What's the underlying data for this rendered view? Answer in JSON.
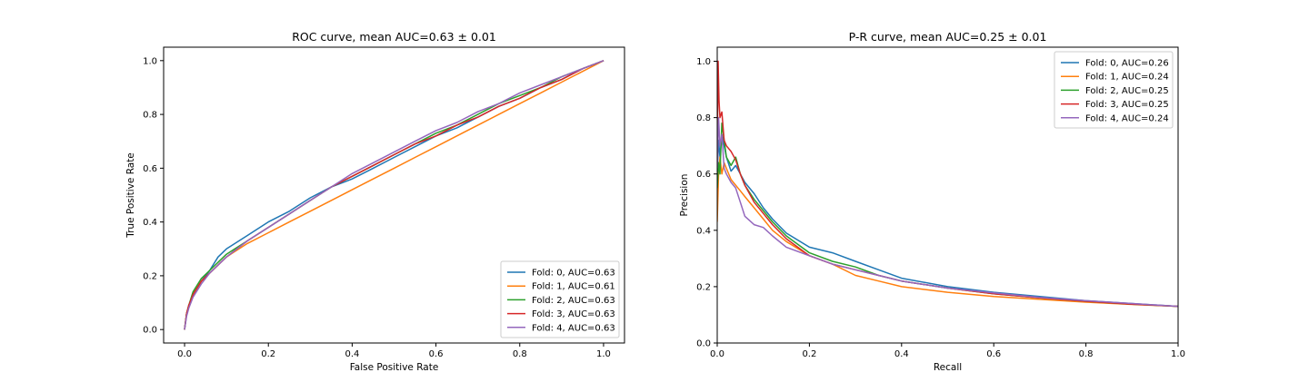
{
  "chart_data": [
    {
      "type": "line",
      "title": "ROC curve, mean AUC=0.63 ± 0.01",
      "xlabel": "False Positive Rate",
      "ylabel": "True Positive Rate",
      "xlim": [
        -0.05,
        1.05
      ],
      "ylim": [
        -0.05,
        1.05
      ],
      "xticks": [
        0.0,
        0.2,
        0.4,
        0.6,
        0.8,
        1.0
      ],
      "yticks": [
        0.0,
        0.2,
        0.4,
        0.6,
        0.8,
        1.0
      ],
      "xtick_labels": [
        "0.0",
        "0.2",
        "0.4",
        "0.6",
        "0.8",
        "1.0"
      ],
      "ytick_labels": [
        "0.0",
        "0.2",
        "0.4",
        "0.6",
        "0.8",
        "1.0"
      ],
      "grid": false,
      "legend_position": "lower-right",
      "series": [
        {
          "name": "Fold: 0, AUC=0.63",
          "color": "#1f77b4",
          "x": [
            0,
            0.005,
            0.01,
            0.02,
            0.04,
            0.06,
            0.08,
            0.1,
            0.15,
            0.2,
            0.25,
            0.3,
            0.35,
            0.4,
            0.45,
            0.5,
            0.55,
            0.6,
            0.65,
            0.7,
            0.75,
            0.8,
            0.85,
            0.9,
            0.95,
            1.0
          ],
          "y": [
            0,
            0.06,
            0.09,
            0.13,
            0.18,
            0.22,
            0.27,
            0.3,
            0.35,
            0.4,
            0.44,
            0.49,
            0.53,
            0.56,
            0.6,
            0.64,
            0.68,
            0.72,
            0.75,
            0.79,
            0.83,
            0.86,
            0.9,
            0.93,
            0.97,
            1.0
          ]
        },
        {
          "name": "Fold: 1, AUC=0.61",
          "color": "#ff7f0e",
          "x": [
            0,
            0.005,
            0.01,
            0.02,
            0.04,
            0.06,
            0.08,
            0.1,
            0.15,
            0.2,
            0.25,
            0.3,
            0.35,
            0.4,
            0.45,
            0.5,
            0.55,
            0.6,
            0.65,
            0.7,
            0.75,
            0.8,
            0.85,
            0.9,
            0.95,
            1.0
          ],
          "y": [
            0,
            0.06,
            0.09,
            0.13,
            0.18,
            0.21,
            0.24,
            0.27,
            0.32,
            0.36,
            0.4,
            0.44,
            0.48,
            0.52,
            0.56,
            0.6,
            0.64,
            0.68,
            0.72,
            0.76,
            0.8,
            0.84,
            0.88,
            0.92,
            0.96,
            1.0
          ]
        },
        {
          "name": "Fold: 2, AUC=0.63",
          "color": "#2ca02c",
          "x": [
            0,
            0.005,
            0.01,
            0.02,
            0.04,
            0.06,
            0.08,
            0.1,
            0.15,
            0.2,
            0.25,
            0.3,
            0.35,
            0.4,
            0.45,
            0.5,
            0.55,
            0.6,
            0.65,
            0.7,
            0.75,
            0.8,
            0.85,
            0.9,
            0.95,
            1.0
          ],
          "y": [
            0,
            0.06,
            0.09,
            0.14,
            0.19,
            0.22,
            0.25,
            0.28,
            0.33,
            0.38,
            0.43,
            0.48,
            0.53,
            0.57,
            0.61,
            0.65,
            0.69,
            0.73,
            0.76,
            0.8,
            0.84,
            0.87,
            0.9,
            0.94,
            0.97,
            1.0
          ]
        },
        {
          "name": "Fold: 3, AUC=0.63",
          "color": "#d62728",
          "x": [
            0,
            0.005,
            0.01,
            0.02,
            0.04,
            0.06,
            0.08,
            0.1,
            0.15,
            0.2,
            0.25,
            0.3,
            0.35,
            0.4,
            0.45,
            0.5,
            0.55,
            0.6,
            0.65,
            0.7,
            0.75,
            0.8,
            0.85,
            0.9,
            0.95,
            1.0
          ],
          "y": [
            0,
            0.06,
            0.09,
            0.13,
            0.18,
            0.21,
            0.24,
            0.27,
            0.33,
            0.38,
            0.43,
            0.48,
            0.53,
            0.57,
            0.61,
            0.65,
            0.69,
            0.72,
            0.76,
            0.79,
            0.83,
            0.86,
            0.9,
            0.93,
            0.97,
            1.0
          ]
        },
        {
          "name": "Fold: 4, AUC=0.63",
          "color": "#9467bd",
          "x": [
            0,
            0.005,
            0.01,
            0.02,
            0.04,
            0.06,
            0.08,
            0.1,
            0.15,
            0.2,
            0.25,
            0.3,
            0.35,
            0.4,
            0.45,
            0.5,
            0.55,
            0.6,
            0.65,
            0.7,
            0.75,
            0.8,
            0.85,
            0.9,
            0.95,
            1.0
          ],
          "y": [
            0,
            0.05,
            0.08,
            0.12,
            0.17,
            0.21,
            0.24,
            0.27,
            0.33,
            0.38,
            0.43,
            0.48,
            0.53,
            0.58,
            0.62,
            0.66,
            0.7,
            0.74,
            0.77,
            0.81,
            0.84,
            0.88,
            0.91,
            0.94,
            0.97,
            1.0
          ]
        }
      ]
    },
    {
      "type": "line",
      "title": "P-R curve, mean AUC=0.25 ± 0.01",
      "xlabel": "Recall",
      "ylabel": "Precision",
      "xlim": [
        0.0,
        1.0
      ],
      "ylim": [
        0.0,
        1.05
      ],
      "xticks": [
        0.0,
        0.2,
        0.4,
        0.6,
        0.8,
        1.0
      ],
      "yticks": [
        0.0,
        0.2,
        0.4,
        0.6,
        0.8,
        1.0
      ],
      "xtick_labels": [
        "0.0",
        "0.2",
        "0.4",
        "0.6",
        "0.8",
        "1.0"
      ],
      "ytick_labels": [
        "0.0",
        "0.2",
        "0.4",
        "0.6",
        "0.8",
        "1.0"
      ],
      "grid": false,
      "legend_position": "upper-right",
      "series": [
        {
          "name": "Fold: 0, AUC=0.26",
          "color": "#1f77b4",
          "x": [
            0,
            0.003,
            0.006,
            0.01,
            0.015,
            0.02,
            0.03,
            0.04,
            0.05,
            0.06,
            0.08,
            0.1,
            0.12,
            0.15,
            0.2,
            0.25,
            0.3,
            0.35,
            0.4,
            0.5,
            0.6,
            0.7,
            0.8,
            0.9,
            1.0
          ],
          "y": [
            0.6,
            0.72,
            0.66,
            0.74,
            0.7,
            0.66,
            0.61,
            0.63,
            0.6,
            0.57,
            0.53,
            0.48,
            0.44,
            0.39,
            0.34,
            0.32,
            0.29,
            0.26,
            0.23,
            0.2,
            0.18,
            0.165,
            0.15,
            0.14,
            0.13
          ]
        },
        {
          "name": "Fold: 1, AUC=0.24",
          "color": "#ff7f0e",
          "x": [
            0,
            0.003,
            0.006,
            0.01,
            0.015,
            0.02,
            0.03,
            0.04,
            0.05,
            0.06,
            0.08,
            0.1,
            0.12,
            0.15,
            0.2,
            0.25,
            0.3,
            0.35,
            0.4,
            0.5,
            0.6,
            0.7,
            0.8,
            0.9,
            1.0
          ],
          "y": [
            0.43,
            0.6,
            0.66,
            0.6,
            0.64,
            0.62,
            0.58,
            0.56,
            0.54,
            0.52,
            0.48,
            0.44,
            0.4,
            0.36,
            0.31,
            0.28,
            0.24,
            0.22,
            0.2,
            0.18,
            0.165,
            0.155,
            0.145,
            0.137,
            0.13
          ]
        },
        {
          "name": "Fold: 2, AUC=0.25",
          "color": "#2ca02c",
          "x": [
            0,
            0.003,
            0.006,
            0.01,
            0.015,
            0.02,
            0.03,
            0.04,
            0.05,
            0.06,
            0.08,
            0.1,
            0.12,
            0.15,
            0.2,
            0.25,
            0.3,
            0.35,
            0.4,
            0.5,
            0.6,
            0.7,
            0.8,
            0.9,
            1.0
          ],
          "y": [
            0.55,
            0.64,
            0.6,
            0.78,
            0.72,
            0.66,
            0.63,
            0.66,
            0.6,
            0.56,
            0.51,
            0.47,
            0.43,
            0.38,
            0.32,
            0.29,
            0.27,
            0.24,
            0.22,
            0.195,
            0.175,
            0.16,
            0.148,
            0.138,
            0.13
          ]
        },
        {
          "name": "Fold: 3, AUC=0.25",
          "color": "#d62728",
          "x": [
            0,
            0.002,
            0.004,
            0.006,
            0.01,
            0.015,
            0.02,
            0.03,
            0.04,
            0.05,
            0.06,
            0.08,
            0.1,
            0.12,
            0.15,
            0.2,
            0.25,
            0.3,
            0.35,
            0.4,
            0.5,
            0.6,
            0.7,
            0.8,
            0.9,
            1.0
          ],
          "y": [
            0.65,
            1.0,
            0.86,
            0.8,
            0.82,
            0.72,
            0.7,
            0.68,
            0.65,
            0.6,
            0.56,
            0.5,
            0.46,
            0.42,
            0.37,
            0.31,
            0.28,
            0.26,
            0.24,
            0.22,
            0.195,
            0.175,
            0.16,
            0.148,
            0.138,
            0.13
          ]
        },
        {
          "name": "Fold: 4, AUC=0.24",
          "color": "#9467bd",
          "x": [
            0,
            0.003,
            0.006,
            0.01,
            0.015,
            0.02,
            0.03,
            0.04,
            0.05,
            0.06,
            0.08,
            0.1,
            0.12,
            0.15,
            0.2,
            0.25,
            0.3,
            0.35,
            0.4,
            0.5,
            0.6,
            0.7,
            0.8,
            0.9,
            1.0
          ],
          "y": [
            0.62,
            0.8,
            0.7,
            0.74,
            0.62,
            0.6,
            0.57,
            0.55,
            0.5,
            0.45,
            0.42,
            0.41,
            0.38,
            0.34,
            0.31,
            0.28,
            0.26,
            0.24,
            0.22,
            0.195,
            0.178,
            0.162,
            0.15,
            0.14,
            0.13
          ]
        }
      ]
    }
  ]
}
